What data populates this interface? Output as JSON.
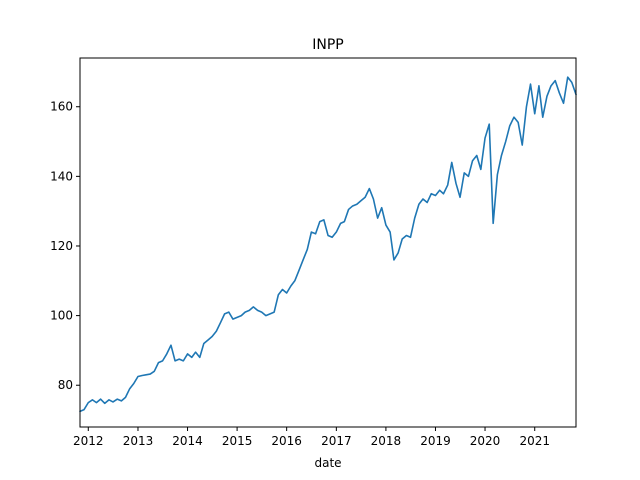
{
  "chart_data": {
    "type": "line",
    "title": "INPP",
    "xlabel": "date",
    "ylabel": "",
    "grid": false,
    "xlim": [
      "2011-11-01",
      "2021-11-01"
    ],
    "ylim": [
      68,
      174
    ],
    "x_ticks": [
      "2012",
      "2013",
      "2014",
      "2015",
      "2016",
      "2017",
      "2018",
      "2019",
      "2020",
      "2021"
    ],
    "x_tick_values": [
      "2012-01-01",
      "2013-01-01",
      "2014-01-01",
      "2015-01-01",
      "2016-01-01",
      "2017-01-01",
      "2018-01-01",
      "2019-01-01",
      "2020-01-01",
      "2021-01-01"
    ],
    "y_ticks": [
      80,
      100,
      120,
      140,
      160
    ],
    "series": [
      {
        "color": "#1f77b4",
        "points": [
          [
            "2011-11-01",
            72.5
          ],
          [
            "2011-12-01",
            73.0
          ],
          [
            "2012-01-01",
            75.0
          ],
          [
            "2012-02-01",
            75.8
          ],
          [
            "2012-03-01",
            75.0
          ],
          [
            "2012-04-01",
            76.0
          ],
          [
            "2012-05-01",
            74.8
          ],
          [
            "2012-06-01",
            75.8
          ],
          [
            "2012-07-01",
            75.2
          ],
          [
            "2012-08-01",
            76.0
          ],
          [
            "2012-09-01",
            75.5
          ],
          [
            "2012-10-01",
            76.5
          ],
          [
            "2012-11-01",
            79.0
          ],
          [
            "2012-12-01",
            80.5
          ],
          [
            "2013-01-01",
            82.5
          ],
          [
            "2013-02-01",
            82.8
          ],
          [
            "2013-03-01",
            83.0
          ],
          [
            "2013-04-01",
            83.2
          ],
          [
            "2013-05-01",
            84.0
          ],
          [
            "2013-06-01",
            86.5
          ],
          [
            "2013-07-01",
            87.0
          ],
          [
            "2013-08-01",
            89.0
          ],
          [
            "2013-09-01",
            91.5
          ],
          [
            "2013-10-01",
            87.0
          ],
          [
            "2013-11-01",
            87.5
          ],
          [
            "2013-12-01",
            87.0
          ],
          [
            "2014-01-01",
            89.0
          ],
          [
            "2014-02-01",
            88.0
          ],
          [
            "2014-03-01",
            89.5
          ],
          [
            "2014-04-01",
            88.0
          ],
          [
            "2014-05-01",
            92.0
          ],
          [
            "2014-06-01",
            93.0
          ],
          [
            "2014-07-01",
            94.0
          ],
          [
            "2014-08-01",
            95.5
          ],
          [
            "2014-09-01",
            98.0
          ],
          [
            "2014-10-01",
            100.5
          ],
          [
            "2014-11-01",
            101.0
          ],
          [
            "2014-12-01",
            99.0
          ],
          [
            "2015-01-01",
            99.5
          ],
          [
            "2015-02-01",
            100.0
          ],
          [
            "2015-03-01",
            101.0
          ],
          [
            "2015-04-01",
            101.5
          ],
          [
            "2015-05-01",
            102.5
          ],
          [
            "2015-06-01",
            101.5
          ],
          [
            "2015-07-01",
            101.0
          ],
          [
            "2015-08-01",
            100.0
          ],
          [
            "2015-09-01",
            100.5
          ],
          [
            "2015-10-01",
            101.0
          ],
          [
            "2015-11-01",
            106.0
          ],
          [
            "2015-12-01",
            107.5
          ],
          [
            "2016-01-01",
            106.5
          ],
          [
            "2016-02-01",
            108.5
          ],
          [
            "2016-03-01",
            110.0
          ],
          [
            "2016-04-01",
            113.0
          ],
          [
            "2016-05-01",
            116.0
          ],
          [
            "2016-06-01",
            119.0
          ],
          [
            "2016-07-01",
            124.0
          ],
          [
            "2016-08-01",
            123.5
          ],
          [
            "2016-09-01",
            127.0
          ],
          [
            "2016-10-01",
            127.5
          ],
          [
            "2016-11-01",
            123.0
          ],
          [
            "2016-12-01",
            122.5
          ],
          [
            "2017-01-01",
            124.0
          ],
          [
            "2017-02-01",
            126.5
          ],
          [
            "2017-03-01",
            127.0
          ],
          [
            "2017-04-01",
            130.5
          ],
          [
            "2017-05-01",
            131.5
          ],
          [
            "2017-06-01",
            132.0
          ],
          [
            "2017-07-01",
            133.0
          ],
          [
            "2017-08-01",
            134.0
          ],
          [
            "2017-09-01",
            136.5
          ],
          [
            "2017-10-01",
            133.5
          ],
          [
            "2017-11-01",
            128.0
          ],
          [
            "2017-12-01",
            131.0
          ],
          [
            "2018-01-01",
            126.0
          ],
          [
            "2018-02-01",
            124.0
          ],
          [
            "2018-03-01",
            116.0
          ],
          [
            "2018-04-01",
            118.0
          ],
          [
            "2018-05-01",
            122.0
          ],
          [
            "2018-06-01",
            123.0
          ],
          [
            "2018-07-01",
            122.5
          ],
          [
            "2018-08-01",
            128.0
          ],
          [
            "2018-09-01",
            132.0
          ],
          [
            "2018-10-01",
            133.5
          ],
          [
            "2018-11-01",
            132.5
          ],
          [
            "2018-12-01",
            135.0
          ],
          [
            "2019-01-01",
            134.5
          ],
          [
            "2019-02-01",
            136.0
          ],
          [
            "2019-03-01",
            135.0
          ],
          [
            "2019-04-01",
            137.5
          ],
          [
            "2019-05-01",
            144.0
          ],
          [
            "2019-06-01",
            138.0
          ],
          [
            "2019-07-01",
            134.0
          ],
          [
            "2019-08-01",
            141.0
          ],
          [
            "2019-09-01",
            140.0
          ],
          [
            "2019-10-01",
            144.5
          ],
          [
            "2019-11-01",
            146.0
          ],
          [
            "2019-12-01",
            142.0
          ],
          [
            "2020-01-01",
            151.0
          ],
          [
            "2020-02-01",
            155.0
          ],
          [
            "2020-03-01",
            126.5
          ],
          [
            "2020-04-01",
            140.5
          ],
          [
            "2020-05-01",
            146.0
          ],
          [
            "2020-06-01",
            150.0
          ],
          [
            "2020-07-01",
            154.5
          ],
          [
            "2020-08-01",
            157.0
          ],
          [
            "2020-09-01",
            155.5
          ],
          [
            "2020-10-01",
            149.0
          ],
          [
            "2020-11-01",
            160.0
          ],
          [
            "2020-12-01",
            166.5
          ],
          [
            "2021-01-01",
            158.0
          ],
          [
            "2021-02-01",
            166.0
          ],
          [
            "2021-03-01",
            157.0
          ],
          [
            "2021-04-01",
            163.0
          ],
          [
            "2021-05-01",
            166.0
          ],
          [
            "2021-06-01",
            167.5
          ],
          [
            "2021-07-01",
            164.0
          ],
          [
            "2021-08-01",
            161.0
          ],
          [
            "2021-09-01",
            168.5
          ],
          [
            "2021-10-01",
            167.0
          ],
          [
            "2021-11-01",
            163.5
          ]
        ]
      }
    ]
  }
}
